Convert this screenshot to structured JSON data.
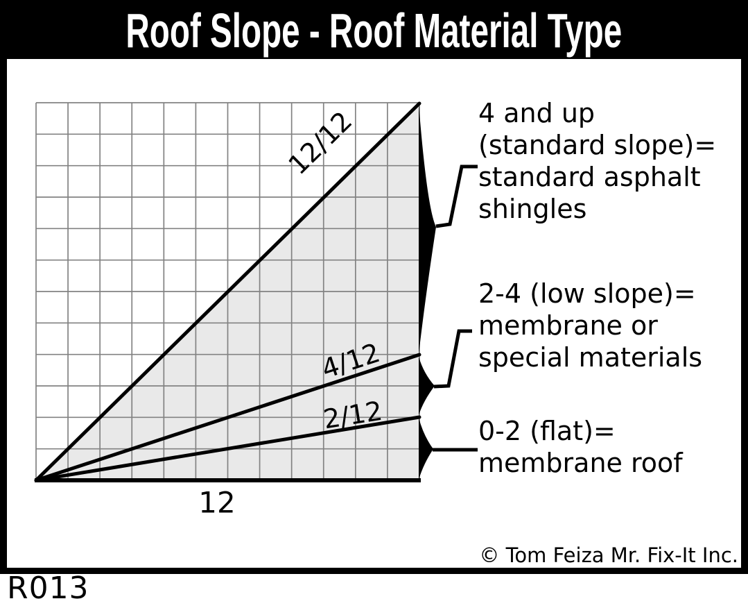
{
  "title": "Roof Slope - Roof Material Type",
  "figure_id": "R013",
  "copyright": "© Tom Feiza Mr. Fix-It Inc.",
  "diagram": {
    "x_axis_label": "12",
    "grid_units": 12,
    "slope_lines": [
      {
        "label": "12/12",
        "rise": 12,
        "run": 12
      },
      {
        "label": "4/12",
        "rise": 4,
        "run": 12
      },
      {
        "label": "2/12",
        "rise": 2,
        "run": 12
      }
    ],
    "callouts": [
      {
        "lines": [
          "4 and up",
          "(standard slope)=",
          "standard asphalt",
          "shingles"
        ]
      },
      {
        "lines": [
          "2-4 (low slope)=",
          "membrane or",
          "special materials"
        ]
      },
      {
        "lines": [
          "0-2 (flat)=",
          "membrane roof"
        ]
      }
    ]
  },
  "colors": {
    "shade": "#e9e9e9",
    "grid_line": "#828282",
    "ink": "#000000",
    "title_bg": "#000000",
    "title_fg": "#ffffff"
  }
}
